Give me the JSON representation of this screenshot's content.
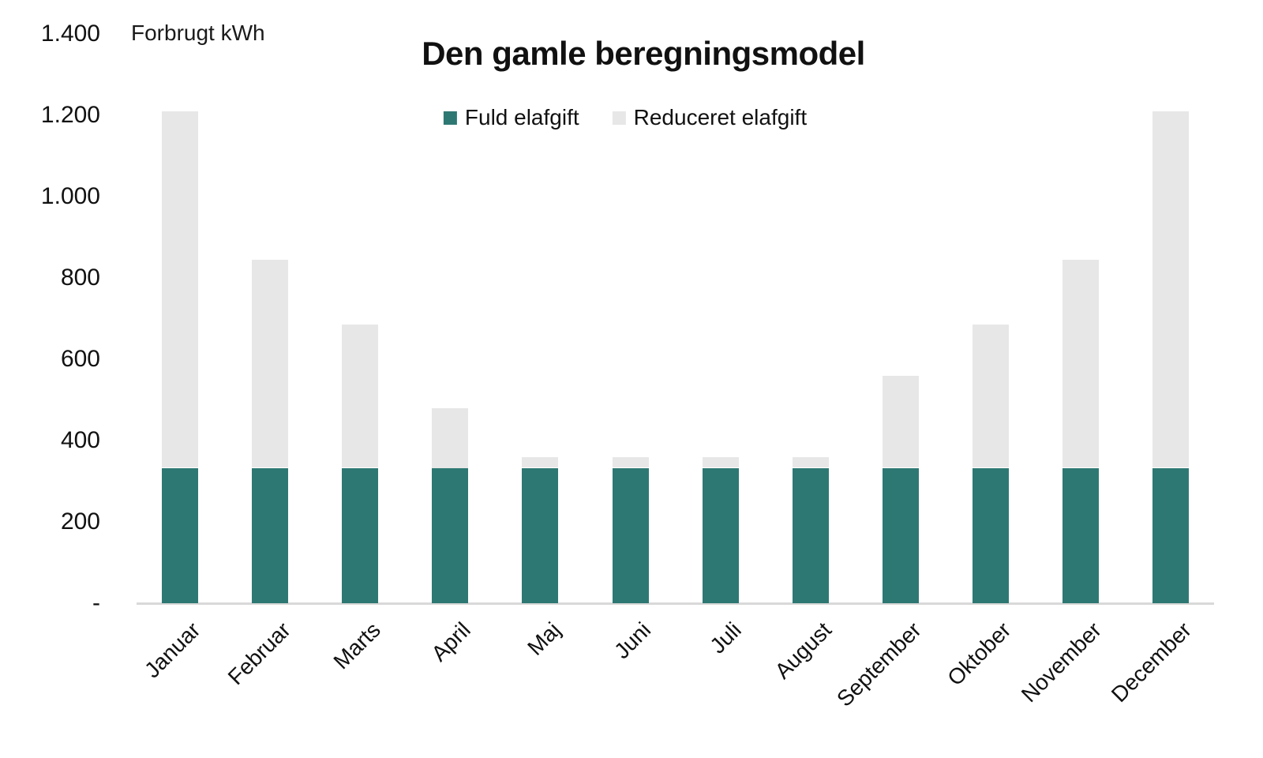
{
  "header": {
    "axis_title": "Forbrugt kWh",
    "title": "Den gamle beregningsmodel"
  },
  "colors": {
    "fuld": "#2E7873",
    "reduceret": "#E7E7E7",
    "axis_line": "#D9D9D9",
    "text": "#111111"
  },
  "chart_data": {
    "type": "bar",
    "stacked": true,
    "title": "Den gamle beregningsmodel",
    "xlabel": "",
    "ylabel": "Forbrugt kWh",
    "grid": false,
    "legend_position": "top",
    "categories": [
      "Januar",
      "Februar",
      "Marts",
      "April",
      "Maj",
      "Juni",
      "Juli",
      "August",
      "September",
      "Oktober",
      "November",
      "December"
    ],
    "series": [
      {
        "name": "Fuld elafgift",
        "color": "#2E7873",
        "values": [
          333,
          333,
          333,
          333,
          333,
          333,
          333,
          333,
          333,
          333,
          333,
          333
        ]
      },
      {
        "name": "Reduceret elafgift",
        "color": "#E7E7E7",
        "values": [
          877,
          512,
          352,
          147,
          27,
          27,
          27,
          27,
          227,
          352,
          512,
          877
        ]
      }
    ],
    "totals": [
      1210,
      845,
      685,
      480,
      360,
      360,
      360,
      360,
      560,
      685,
      845,
      1210
    ],
    "y_axis": {
      "min": 0,
      "max": 1400,
      "ticks": [
        {
          "label": "1.400",
          "value": 1400
        },
        {
          "label": "1.200",
          "value": 1200
        },
        {
          "label": "1.000",
          "value": 1000
        },
        {
          "label": "800",
          "value": 800
        },
        {
          "label": "600",
          "value": 600
        },
        {
          "label": "400",
          "value": 400
        },
        {
          "label": "200",
          "value": 200
        },
        {
          "label": "-",
          "value": 0
        }
      ]
    }
  }
}
